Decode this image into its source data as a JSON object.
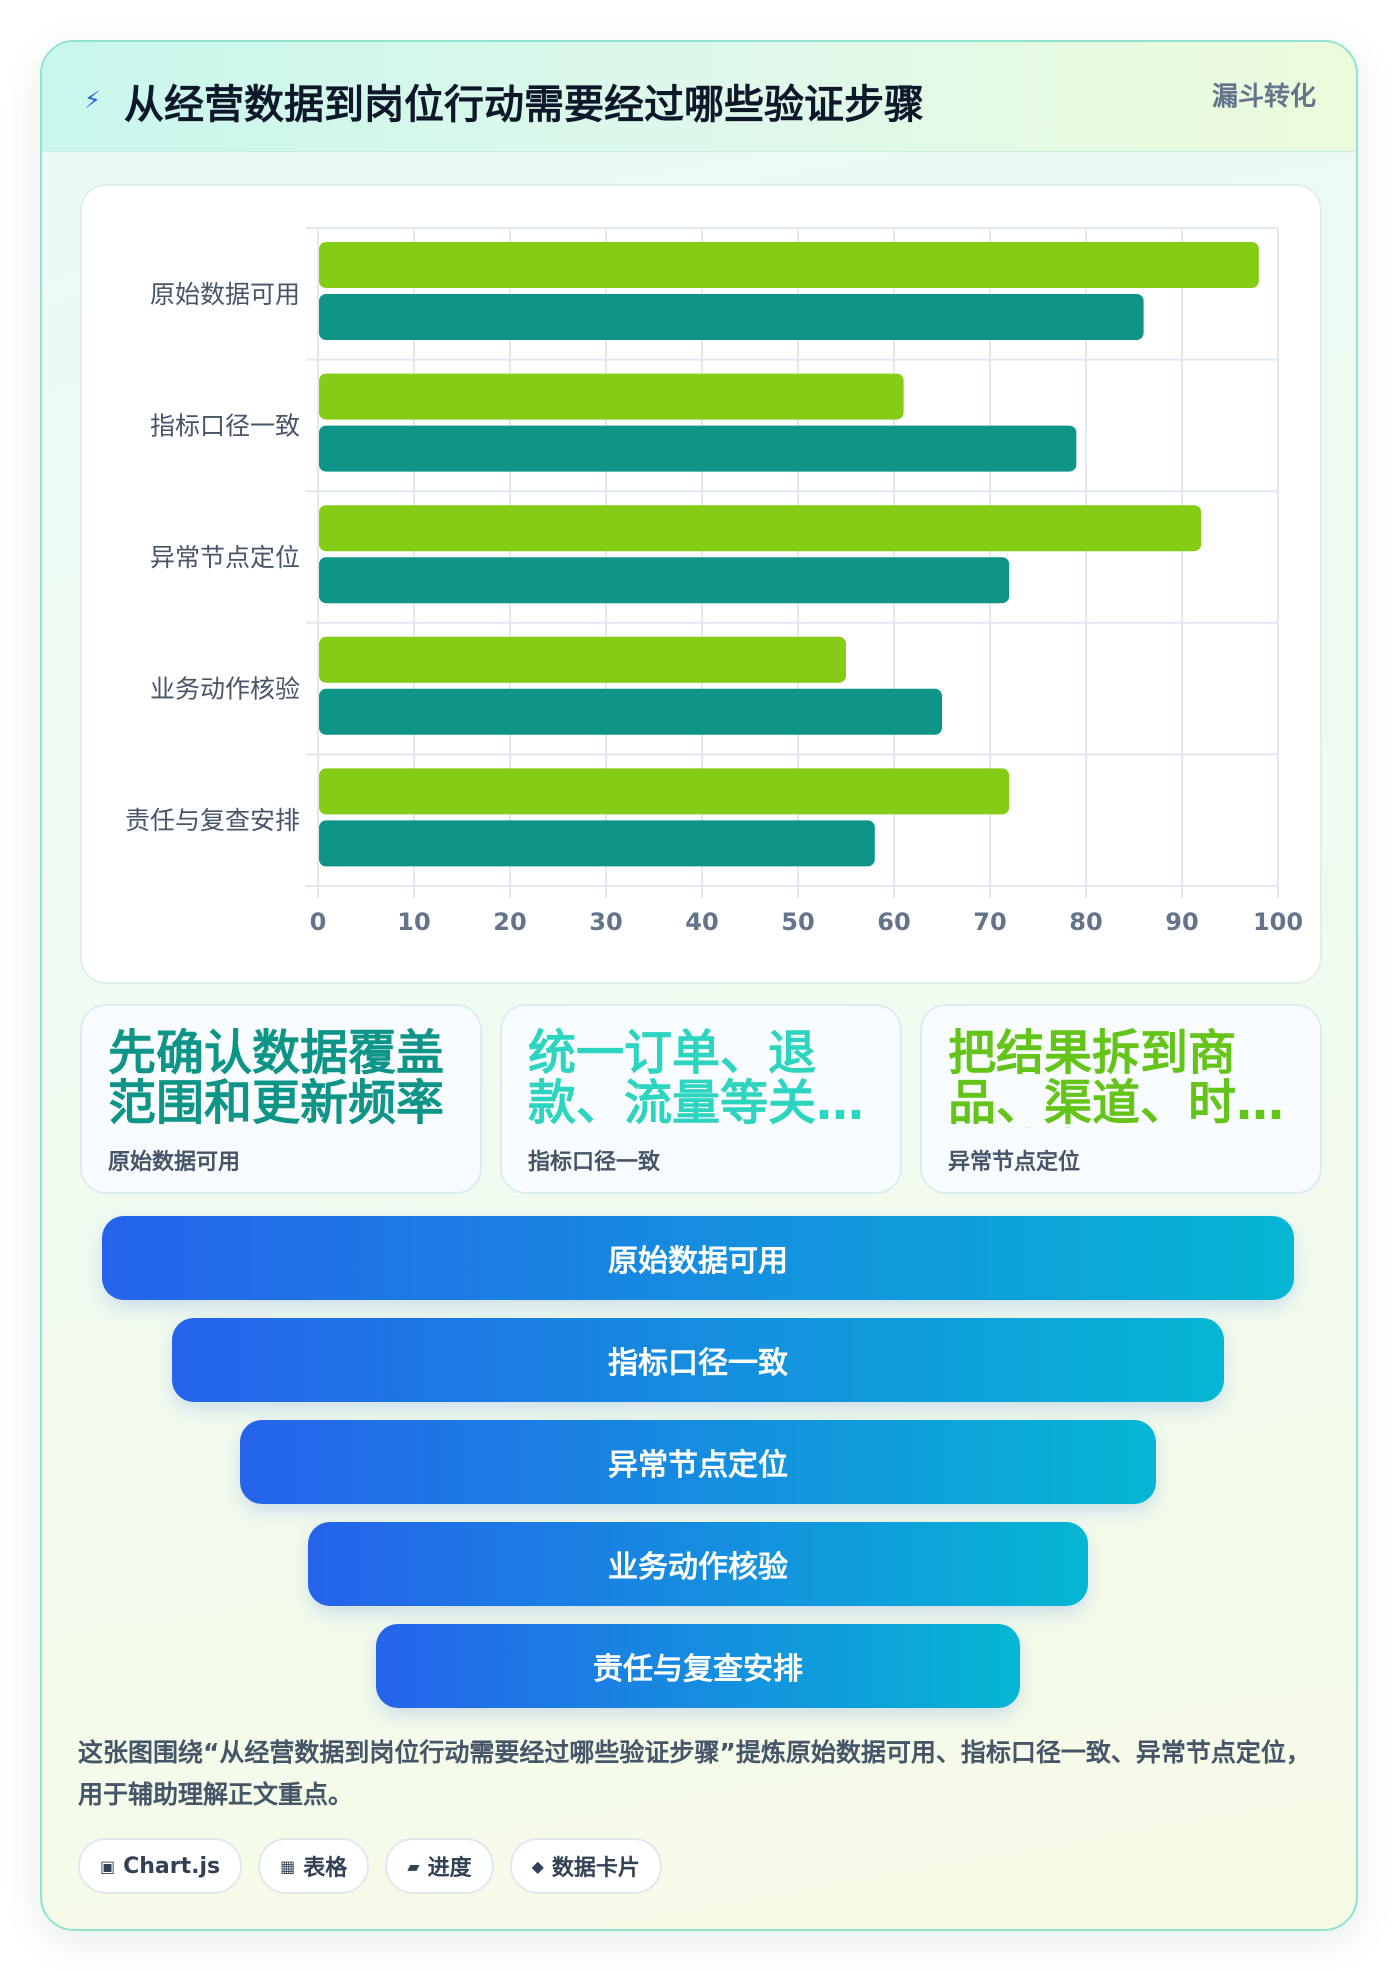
{
  "header": {
    "icon": "bolt-icon",
    "icon_glyph": "⚡",
    "title": "从经营数据到岗位行动需要经过哪些验证步骤",
    "tag": "漏斗转化"
  },
  "chart_data": {
    "type": "bar",
    "orientation": "horizontal",
    "categories": [
      "原始数据可用",
      "指标口径一致",
      "异常节点定位",
      "业务动作核验",
      "责任与复查安排"
    ],
    "series": [
      {
        "values": [
          98,
          61,
          92,
          55,
          72
        ],
        "color": "#84cc16"
      },
      {
        "values": [
          86,
          79,
          72,
          65,
          58
        ],
        "color": "#0f9488"
      }
    ],
    "xlim": [
      0,
      100
    ],
    "xticks": [
      0,
      10,
      20,
      30,
      40,
      50,
      60,
      70,
      80,
      90,
      100
    ],
    "grid": true,
    "legend": "none",
    "xlabel": "",
    "ylabel": ""
  },
  "cards": [
    {
      "value": "先确认数据覆盖范围和更新频率",
      "label": "原始数据可用",
      "color": "#0f9488"
    },
    {
      "value": "统一订单、退款、流量等关键指标口径",
      "label": "指标口径一致",
      "color": "#2dd4bf"
    },
    {
      "value": "把结果拆到商品、渠道、时段等节点",
      "label": "异常节点定位",
      "color": "#65c41a"
    }
  ],
  "funnel": [
    {
      "label": "原始数据可用"
    },
    {
      "label": "指标口径一致"
    },
    {
      "label": "异常节点定位"
    },
    {
      "label": "业务动作核验"
    },
    {
      "label": "责任与复查安排"
    }
  ],
  "summary": "这张图围绕“从经营数据到岗位行动需要经过哪些验证步骤”提炼原始数据可用、指标口径一致、异常节点定位，用于辅助理解正文重点。",
  "chips": [
    {
      "icon": "chart-icon",
      "glyph": "▣",
      "label": "Chart.js"
    },
    {
      "icon": "table-icon",
      "glyph": "▦",
      "label": "表格"
    },
    {
      "icon": "progress-icon",
      "glyph": "▰",
      "label": "进度"
    },
    {
      "icon": "data-card-icon",
      "glyph": "◆",
      "label": "数据卡片"
    }
  ]
}
